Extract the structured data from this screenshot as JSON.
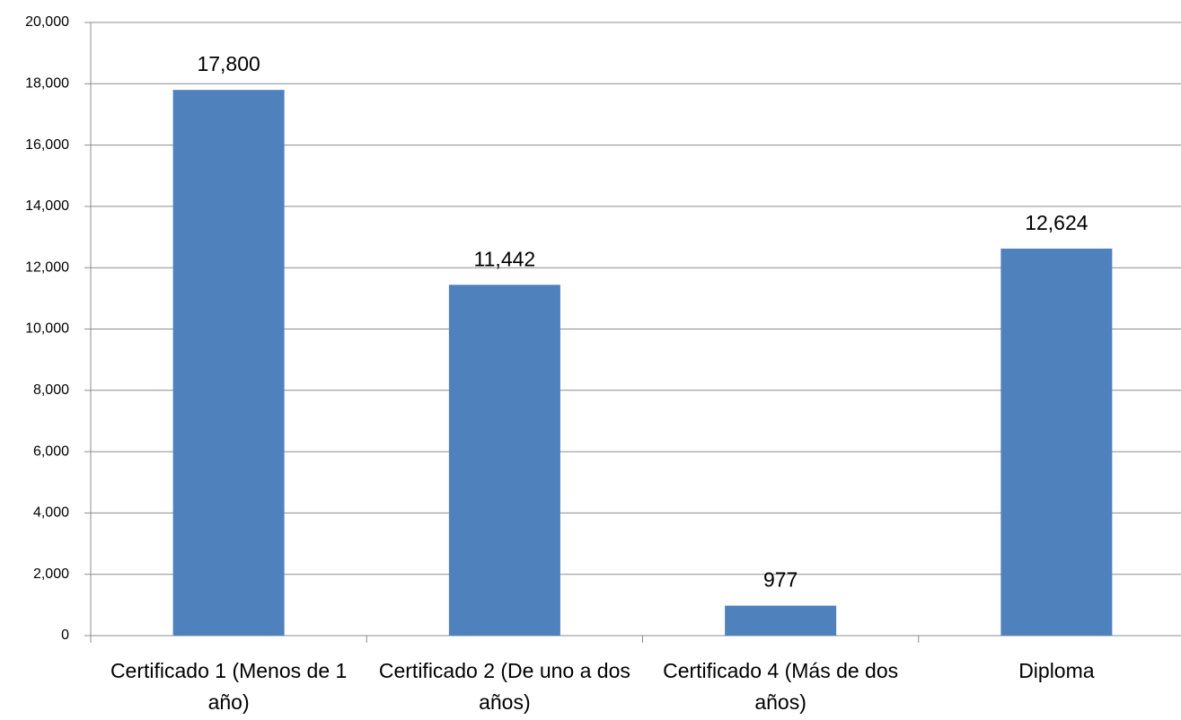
{
  "chart_data": {
    "type": "bar",
    "categories": [
      "Certificado 1 (Menos de 1 año)",
      "Certificado 2 (De uno a dos años)",
      "Certificado 4 (Más de dos años)",
      "Diploma"
    ],
    "values": [
      17800,
      11442,
      977,
      12624
    ],
    "value_labels": [
      "17,800",
      "11,442",
      "977",
      "12,624"
    ],
    "color": "#4f81bd",
    "ylim": [
      0,
      20000
    ],
    "yticks": [
      0,
      {
        "value": 2000,
        "label": "2,000"
      },
      {
        "value": 4000,
        "label": "4,000"
      },
      {
        "value": 6000,
        "label": "6,000"
      },
      {
        "value": 8000,
        "label": "8,000"
      },
      {
        "value": 10000,
        "label": "10,000"
      },
      {
        "value": 12000,
        "label": "12,000"
      },
      {
        "value": 14000,
        "label": "14,000"
      },
      {
        "value": 16000,
        "label": "16,000"
      },
      {
        "value": 18000,
        "label": "18,000"
      },
      {
        "value": 20000,
        "label": "20,000"
      }
    ],
    "grid": true
  }
}
